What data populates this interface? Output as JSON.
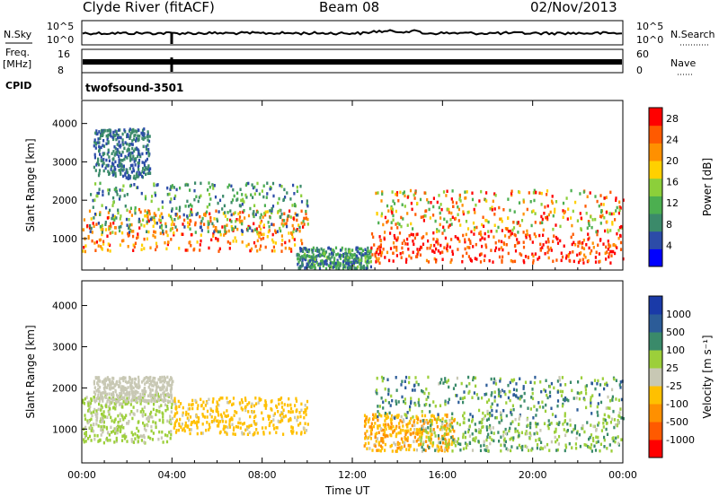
{
  "header": {
    "station": "Clyde River (fitACF)",
    "beam": "Beam 08",
    "date": "02/Nov/2013"
  },
  "status_panels": {
    "nsky": {
      "label_top": "N.Sky",
      "tick_top": "10^5",
      "tick_bottom": "10^0"
    },
    "nsearch": {
      "label": "N.Search",
      "tick_top": "10^5",
      "tick_bottom": "10^0"
    },
    "freq": {
      "label_top": "Freq.",
      "label_mid": "[MHz]",
      "tick_top": "16",
      "tick_bottom": "8"
    },
    "nave": {
      "label": "Nave",
      "tick_top": "60",
      "tick_bottom": "0"
    },
    "cpid": {
      "label": "CPID",
      "program": "twofsound",
      "id": "-3501"
    }
  },
  "chart_data": [
    {
      "type": "heatmap",
      "name": "power",
      "ylabel": "Slant Range [km]",
      "xlabel": "Time UT",
      "x_ticks": [
        "00:00",
        "04:00",
        "08:00",
        "12:00",
        "16:00",
        "20:00",
        "00:00"
      ],
      "xlim_hours": [
        0,
        24
      ],
      "y_ticks": [
        "1000",
        "2000",
        "3000",
        "4000"
      ],
      "ylim_km": [
        180,
        4600
      ],
      "colorbar": {
        "label": "Power [dB]",
        "ticks": [
          "4",
          "8",
          "12",
          "16",
          "20",
          "24",
          "28"
        ],
        "range": [
          0,
          30
        ],
        "colors": [
          "#0000ff",
          "#2c4ca8",
          "#3b8a6a",
          "#4caf50",
          "#8ccf3a",
          "#ffd000",
          "#ff9000",
          "#ff5a00",
          "#ff0000"
        ]
      },
      "regions": [
        {
          "t0": 0.0,
          "t1": 10.0,
          "r0": 700,
          "r1": 1800,
          "v0": 18,
          "v1": 28
        },
        {
          "t0": 0.3,
          "t1": 10.0,
          "r0": 1200,
          "r1": 2500,
          "v0": 4,
          "v1": 16
        },
        {
          "t0": 0.5,
          "t1": 3.0,
          "r0": 2600,
          "r1": 3900,
          "v0": 4,
          "v1": 10
        },
        {
          "t0": 9.5,
          "t1": 12.8,
          "r0": 250,
          "r1": 800,
          "v0": 4,
          "v1": 14
        },
        {
          "t0": 12.8,
          "t1": 24.0,
          "r0": 400,
          "r1": 1200,
          "v0": 22,
          "v1": 30
        },
        {
          "t0": 13.0,
          "t1": 24.0,
          "r0": 1200,
          "r1": 2300,
          "v0": 10,
          "v1": 30
        }
      ]
    },
    {
      "type": "heatmap",
      "name": "velocity",
      "ylabel": "Slant Range [km]",
      "xlabel": "Time UT",
      "x_ticks": [
        "00:00",
        "04:00",
        "08:00",
        "12:00",
        "16:00",
        "20:00",
        "00:00"
      ],
      "xlim_hours": [
        0,
        24
      ],
      "y_ticks": [
        "1000",
        "2000",
        "3000",
        "4000"
      ],
      "ylim_km": [
        180,
        4600
      ],
      "colorbar": {
        "label": "Velocity [m s⁻¹]",
        "ticks": [
          "1000",
          "500",
          "100",
          "25",
          "-25",
          "-100",
          "-500",
          "-1000"
        ],
        "range": [
          -1200,
          1200
        ],
        "colors": [
          "#ff0000",
          "#ff5a00",
          "#ff9000",
          "#ffc000",
          "#c8c8b4",
          "#9ccf3a",
          "#3a8a6a",
          "#2c5c98",
          "#1a3aa8"
        ]
      },
      "regions": [
        {
          "t0": 0.0,
          "t1": 4.0,
          "r0": 700,
          "r1": 1900,
          "v0": 50,
          "v1": 300
        },
        {
          "t0": 0.5,
          "t1": 4.0,
          "r0": 1700,
          "r1": 2300,
          "v0": -20,
          "v1": 20
        },
        {
          "t0": 4.0,
          "t1": 10.0,
          "r0": 900,
          "r1": 1800,
          "v0": -400,
          "v1": -100
        },
        {
          "t0": 12.5,
          "t1": 16.5,
          "r0": 500,
          "r1": 1400,
          "v0": -600,
          "v1": -80
        },
        {
          "t0": 15.0,
          "t1": 24.0,
          "r0": 500,
          "r1": 1300,
          "v0": 60,
          "v1": 600
        },
        {
          "t0": 13.0,
          "t1": 24.0,
          "r0": 1300,
          "r1": 2300,
          "v0": 100,
          "v1": 900
        }
      ]
    }
  ]
}
